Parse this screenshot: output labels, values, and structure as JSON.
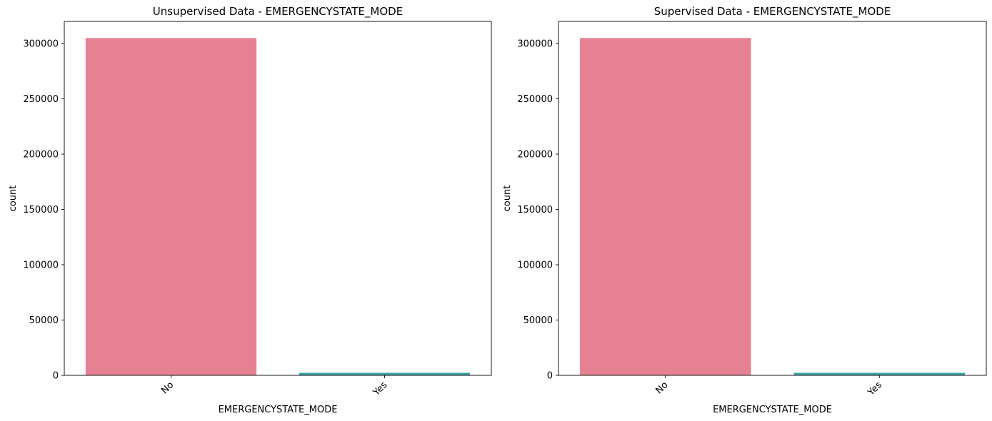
{
  "chart_data": [
    {
      "type": "bar",
      "title": "Unsupervised Data - EMERGENCYSTATE_MODE",
      "xlabel": "EMERGENCYSTATE_MODE",
      "ylabel": "count",
      "categories": [
        "No",
        "Yes"
      ],
      "values": [
        305000,
        2300
      ],
      "colors": [
        "#e68193",
        "#3aa59c"
      ],
      "ylim": [
        0,
        320000
      ],
      "yticks": [
        0,
        50000,
        100000,
        150000,
        200000,
        250000,
        300000
      ],
      "ytick_labels": [
        "0",
        "50000",
        "100000",
        "150000",
        "200000",
        "250000",
        "300000"
      ],
      "grid": false,
      "xtick_rotation": "45deg, right-aligned"
    },
    {
      "type": "bar",
      "title": "Supervised Data - EMERGENCYSTATE_MODE",
      "xlabel": "EMERGENCYSTATE_MODE",
      "ylabel": "count",
      "categories": [
        "No",
        "Yes"
      ],
      "values": [
        305000,
        2300
      ],
      "colors": [
        "#e68193",
        "#3aa59c"
      ],
      "ylim": [
        0,
        320000
      ],
      "yticks": [
        0,
        50000,
        100000,
        150000,
        200000,
        250000,
        300000
      ],
      "ytick_labels": [
        "0",
        "50000",
        "100000",
        "150000",
        "200000",
        "250000",
        "300000"
      ],
      "grid": false,
      "xtick_rotation": "45deg, right-aligned"
    }
  ]
}
